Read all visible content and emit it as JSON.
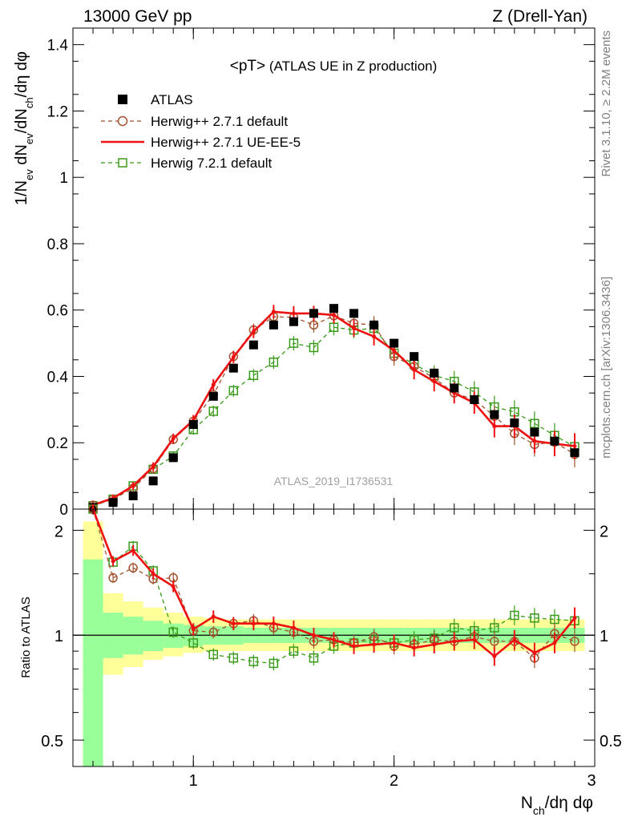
{
  "header": {
    "left": "13000 GeV pp",
    "right": "Z (Drell-Yan)"
  },
  "title": "<pT> (ATLAS UE in Z production)",
  "side_label_top": "Rivet 3.1.10, ≥ 2.2M events",
  "side_label_bottom": "mcplots.cern.ch [arXiv:1306.3436]",
  "watermark": "ATLAS_2019_I1736531",
  "colors": {
    "atlas": "#000000",
    "herwigpp_default": "#a0522d",
    "herwigpp_ue": "#ee1111",
    "herwig7": "#3a9a1a",
    "band_inner": "#99ff99",
    "band_outer": "#ffff99"
  },
  "chart_data": [
    {
      "type": "scatter",
      "name": "main",
      "ylabel": "1/N_ev dN_ev/dN_ch/dη dφ",
      "xlim": [
        0.4,
        3.0
      ],
      "ylim": [
        0,
        1.45
      ],
      "yticks": [
        0,
        0.2,
        0.4,
        0.6,
        0.8,
        1,
        1.2,
        1.4
      ],
      "ytick_labels": [
        "0",
        "0.2",
        "0.4",
        "0.6",
        "0.8",
        "1",
        "1.2",
        "1.4"
      ],
      "x": [
        0.5,
        0.6,
        0.7,
        0.8,
        0.9,
        1.0,
        1.1,
        1.2,
        1.3,
        1.4,
        1.5,
        1.6,
        1.7,
        1.8,
        1.9,
        2.0,
        2.1,
        2.2,
        2.3,
        2.4,
        2.5,
        2.6,
        2.7,
        2.8,
        2.9
      ],
      "series": [
        {
          "name": "ATLAS",
          "key": "atlas",
          "marker": "filled-square",
          "values": [
            0.005,
            0.02,
            0.04,
            0.085,
            0.155,
            0.255,
            0.34,
            0.425,
            0.495,
            0.555,
            0.565,
            0.59,
            0.605,
            0.59,
            0.555,
            0.5,
            0.46,
            0.41,
            0.365,
            0.33,
            0.285,
            0.26,
            0.232,
            0.205,
            0.17
          ]
        },
        {
          "name": "Herwig++ 2.7.1 default",
          "key": "herwigpp_default",
          "marker": "open-circle",
          "dashed": true,
          "values": [
            0.012,
            0.03,
            0.063,
            0.122,
            0.21,
            0.265,
            0.345,
            0.46,
            0.54,
            0.58,
            0.578,
            0.555,
            0.583,
            0.56,
            0.555,
            0.46,
            0.43,
            0.395,
            0.35,
            0.33,
            0.28,
            0.228,
            0.195,
            0.202,
            0.165
          ]
        },
        {
          "name": "Herwig++ 2.7.1 UE-EE-5",
          "key": "herwigpp_ue",
          "marker": "none",
          "dashed": false,
          "values": [
            0.012,
            0.033,
            0.07,
            0.128,
            0.213,
            0.268,
            0.375,
            0.458,
            0.535,
            0.595,
            0.59,
            0.59,
            0.585,
            0.545,
            0.52,
            0.478,
            0.42,
            0.385,
            0.35,
            0.32,
            0.25,
            0.25,
            0.205,
            0.197,
            0.19
          ]
        },
        {
          "name": "Herwig 7.2.1 default",
          "key": "herwig7",
          "marker": "open-square",
          "dashed": true,
          "values": [
            0.01,
            0.03,
            0.07,
            0.12,
            0.16,
            0.24,
            0.295,
            0.357,
            0.403,
            0.443,
            0.5,
            0.487,
            0.548,
            0.54,
            0.545,
            0.47,
            0.437,
            0.403,
            0.385,
            0.353,
            0.308,
            0.293,
            0.258,
            0.222,
            0.188
          ]
        }
      ]
    },
    {
      "type": "scatter",
      "name": "ratio",
      "ylabel": "Ratio to ATLAS",
      "xlabel": "N_ch/dη dφ",
      "scale": "log",
      "xlim": [
        0.4,
        3.0
      ],
      "ylim": [
        0.42,
        2.3
      ],
      "yticks": [
        0.5,
        1,
        2
      ],
      "ytick_labels": [
        "0.5",
        "1",
        "2"
      ],
      "xticks": [
        1,
        2,
        3
      ],
      "xtick_labels": [
        "1",
        "2",
        "3"
      ],
      "x": [
        0.5,
        0.6,
        0.7,
        0.8,
        0.9,
        1.0,
        1.1,
        1.2,
        1.3,
        1.4,
        1.5,
        1.6,
        1.7,
        1.8,
        1.9,
        2.0,
        2.1,
        2.2,
        2.3,
        2.4,
        2.5,
        2.6,
        2.7,
        2.8,
        2.9
      ],
      "band_edges": [
        0.45,
        0.55,
        0.65,
        0.75,
        0.85,
        0.95,
        1.05,
        1.15,
        1.25,
        1.35,
        1.45,
        1.55,
        1.65,
        1.75,
        1.85,
        1.95,
        2.05,
        2.15,
        2.25,
        2.35,
        2.45,
        2.55,
        2.65,
        2.75,
        2.85,
        2.95
      ],
      "band_inner": [
        [
          0.38,
          1.65
        ],
        [
          0.86,
          1.16
        ],
        [
          0.88,
          1.13
        ],
        [
          0.9,
          1.1
        ],
        [
          0.92,
          1.08
        ],
        [
          0.93,
          1.07
        ],
        [
          0.94,
          1.06
        ],
        [
          0.94,
          1.06
        ],
        [
          0.95,
          1.05
        ],
        [
          0.95,
          1.05
        ],
        [
          0.95,
          1.05
        ],
        [
          0.95,
          1.05
        ],
        [
          0.95,
          1.05
        ],
        [
          0.95,
          1.05
        ],
        [
          0.95,
          1.05
        ],
        [
          0.95,
          1.05
        ],
        [
          0.95,
          1.05
        ],
        [
          0.95,
          1.05
        ],
        [
          0.95,
          1.05
        ],
        [
          0.95,
          1.05
        ],
        [
          0.95,
          1.05
        ],
        [
          0.95,
          1.05
        ],
        [
          0.95,
          1.05
        ],
        [
          0.95,
          1.05
        ],
        [
          0.95,
          1.05
        ]
      ],
      "band_outer": [
        [
          0.36,
          2.12
        ],
        [
          0.77,
          1.32
        ],
        [
          0.81,
          1.25
        ],
        [
          0.85,
          1.2
        ],
        [
          0.87,
          1.16
        ],
        [
          0.89,
          1.13
        ],
        [
          0.9,
          1.12
        ],
        [
          0.9,
          1.11
        ],
        [
          0.9,
          1.11
        ],
        [
          0.9,
          1.11
        ],
        [
          0.9,
          1.11
        ],
        [
          0.9,
          1.11
        ],
        [
          0.9,
          1.11
        ],
        [
          0.9,
          1.11
        ],
        [
          0.9,
          1.11
        ],
        [
          0.9,
          1.11
        ],
        [
          0.9,
          1.11
        ],
        [
          0.9,
          1.11
        ],
        [
          0.9,
          1.11
        ],
        [
          0.9,
          1.11
        ],
        [
          0.9,
          1.11
        ],
        [
          0.9,
          1.11
        ],
        [
          0.9,
          1.11
        ],
        [
          0.9,
          1.11
        ],
        [
          0.9,
          1.11
        ]
      ],
      "series": [
        {
          "name": "Herwig++ 2.7.1 default",
          "key": "herwigpp_default",
          "marker": "open-circle",
          "dashed": true,
          "values": [
            2.3,
            1.46,
            1.56,
            1.45,
            1.46,
            1.03,
            1.02,
            1.08,
            1.1,
            1.05,
            1.02,
            0.96,
            0.97,
            0.95,
            0.99,
            0.93,
            0.94,
            0.97,
            0.96,
            0.99,
            0.96,
            0.96,
            0.86,
            1.01,
            0.96
          ]
        },
        {
          "name": "Herwig++ 2.7.1 UE-EE-5",
          "key": "herwigpp_ue",
          "marker": "none",
          "dashed": false,
          "values": [
            2.35,
            1.63,
            1.75,
            1.5,
            1.38,
            1.04,
            1.13,
            1.08,
            1.08,
            1.08,
            1.05,
            1.0,
            0.97,
            0.93,
            0.94,
            0.95,
            0.92,
            0.94,
            0.96,
            0.97,
            0.87,
            0.97,
            0.89,
            0.95,
            1.12
          ]
        },
        {
          "name": "Herwig 7.2.1 default",
          "key": "herwig7",
          "marker": "open-square",
          "dashed": true,
          "values": [
            2.3,
            1.62,
            1.8,
            1.53,
            1.02,
            0.95,
            0.88,
            0.86,
            0.84,
            0.83,
            0.9,
            0.86,
            0.93,
            0.95,
            0.97,
            0.95,
            0.97,
            0.98,
            1.05,
            1.03,
            1.05,
            1.14,
            1.12,
            1.11,
            1.1
          ]
        }
      ]
    }
  ]
}
